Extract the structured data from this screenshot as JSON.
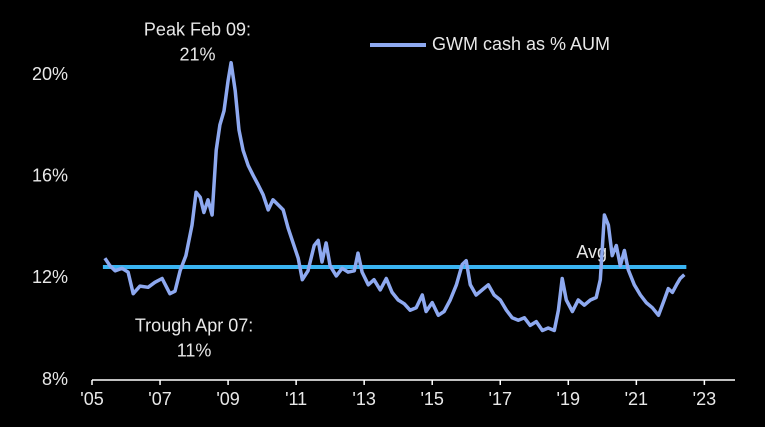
{
  "chart_data": {
    "type": "line",
    "series": [
      {
        "name": "GWM cash as % AUM",
        "color": "#8ea9f0",
        "x": [
          2005.38,
          2005.53,
          2005.68,
          2005.88,
          2006.06,
          2006.21,
          2006.41,
          2006.65,
          2006.85,
          2007.06,
          2007.29,
          2007.44,
          2007.59,
          2007.76,
          2007.94,
          2008.06,
          2008.18,
          2008.29,
          2008.41,
          2008.53,
          2008.65,
          2008.76,
          2008.88,
          2009.0,
          2009.09,
          2009.21,
          2009.32,
          2009.44,
          2009.59,
          2009.74,
          2009.88,
          2010.03,
          2010.18,
          2010.32,
          2010.47,
          2010.62,
          2010.76,
          2010.91,
          2011.06,
          2011.18,
          2011.35,
          2011.53,
          2011.65,
          2011.76,
          2011.88,
          2012.0,
          2012.18,
          2012.35,
          2012.53,
          2012.71,
          2012.82,
          2012.94,
          2013.12,
          2013.29,
          2013.47,
          2013.65,
          2013.82,
          2014.0,
          2014.18,
          2014.35,
          2014.53,
          2014.71,
          2014.82,
          2015.0,
          2015.18,
          2015.35,
          2015.53,
          2015.71,
          2015.88,
          2016.0,
          2016.12,
          2016.29,
          2016.47,
          2016.65,
          2016.82,
          2017.0,
          2017.18,
          2017.35,
          2017.53,
          2017.71,
          2017.88,
          2018.06,
          2018.24,
          2018.41,
          2018.59,
          2018.71,
          2018.82,
          2018.94,
          2019.12,
          2019.29,
          2019.47,
          2019.65,
          2019.82,
          2019.94,
          2020.06,
          2020.18,
          2020.29,
          2020.41,
          2020.53,
          2020.65,
          2020.76,
          2020.94,
          2021.12,
          2021.29,
          2021.47,
          2021.65,
          2021.82,
          2021.94,
          2022.06,
          2022.18,
          2022.29,
          2022.41
        ],
        "values": [
          12.8,
          12.5,
          12.3,
          12.4,
          12.25,
          11.4,
          11.7,
          11.65,
          11.85,
          12.0,
          11.4,
          11.5,
          12.3,
          12.9,
          14.1,
          15.4,
          15.2,
          14.6,
          15.1,
          14.5,
          17.05,
          18.05,
          18.6,
          19.8,
          20.5,
          19.4,
          17.85,
          17.05,
          16.45,
          16.05,
          15.7,
          15.3,
          14.7,
          15.1,
          14.9,
          14.7,
          14.0,
          13.4,
          12.8,
          11.95,
          12.3,
          13.3,
          13.5,
          12.65,
          13.4,
          12.5,
          12.1,
          12.4,
          12.25,
          12.3,
          13.0,
          12.25,
          11.75,
          11.95,
          11.55,
          12.0,
          11.45,
          11.15,
          11.0,
          10.75,
          10.85,
          11.35,
          10.7,
          11.05,
          10.55,
          10.7,
          11.15,
          11.75,
          12.55,
          12.7,
          11.75,
          11.35,
          11.55,
          11.75,
          11.35,
          11.15,
          10.75,
          10.45,
          10.35,
          10.45,
          10.15,
          10.3,
          9.95,
          10.05,
          9.95,
          10.75,
          12.0,
          11.15,
          10.7,
          11.15,
          10.95,
          11.15,
          11.25,
          11.95,
          14.5,
          14.1,
          12.9,
          13.3,
          12.5,
          13.1,
          12.35,
          11.75,
          11.35,
          11.05,
          10.85,
          10.55,
          11.15,
          11.6,
          11.45,
          11.75,
          12.0,
          12.15
        ]
      }
    ],
    "average": {
      "label": "Avg",
      "value": 12.45,
      "x": [
        2005.32,
        2022.47
      ],
      "color": "#3ab4f2"
    },
    "annotations": [
      {
        "lines": [
          "Peak Feb 09:",
          "21%"
        ],
        "x": 2008.1,
        "y": 21.75
      },
      {
        "lines": [
          "Trough Apr 07:",
          "11%"
        ],
        "x": 2008.0,
        "y": 10.1
      }
    ],
    "xlim": [
      2005,
      2023.9
    ],
    "xticks": [
      {
        "value": 2005,
        "label": "'05"
      },
      {
        "value": 2007,
        "label": "'07"
      },
      {
        "value": 2009,
        "label": "'09"
      },
      {
        "value": 2011,
        "label": "'11"
      },
      {
        "value": 2013,
        "label": "'13"
      },
      {
        "value": 2015,
        "label": "'15"
      },
      {
        "value": 2017,
        "label": "'17"
      },
      {
        "value": 2019,
        "label": "'19"
      },
      {
        "value": 2021,
        "label": "'21"
      },
      {
        "value": 2023,
        "label": "'23"
      }
    ],
    "ylim": [
      8,
      21
    ],
    "yticks": [
      {
        "value": 8,
        "label": "8%"
      },
      {
        "value": 12,
        "label": "12%"
      },
      {
        "value": 16,
        "label": "16%"
      },
      {
        "value": 20,
        "label": "20%"
      }
    ],
    "grid": false,
    "legend": "top-center"
  }
}
